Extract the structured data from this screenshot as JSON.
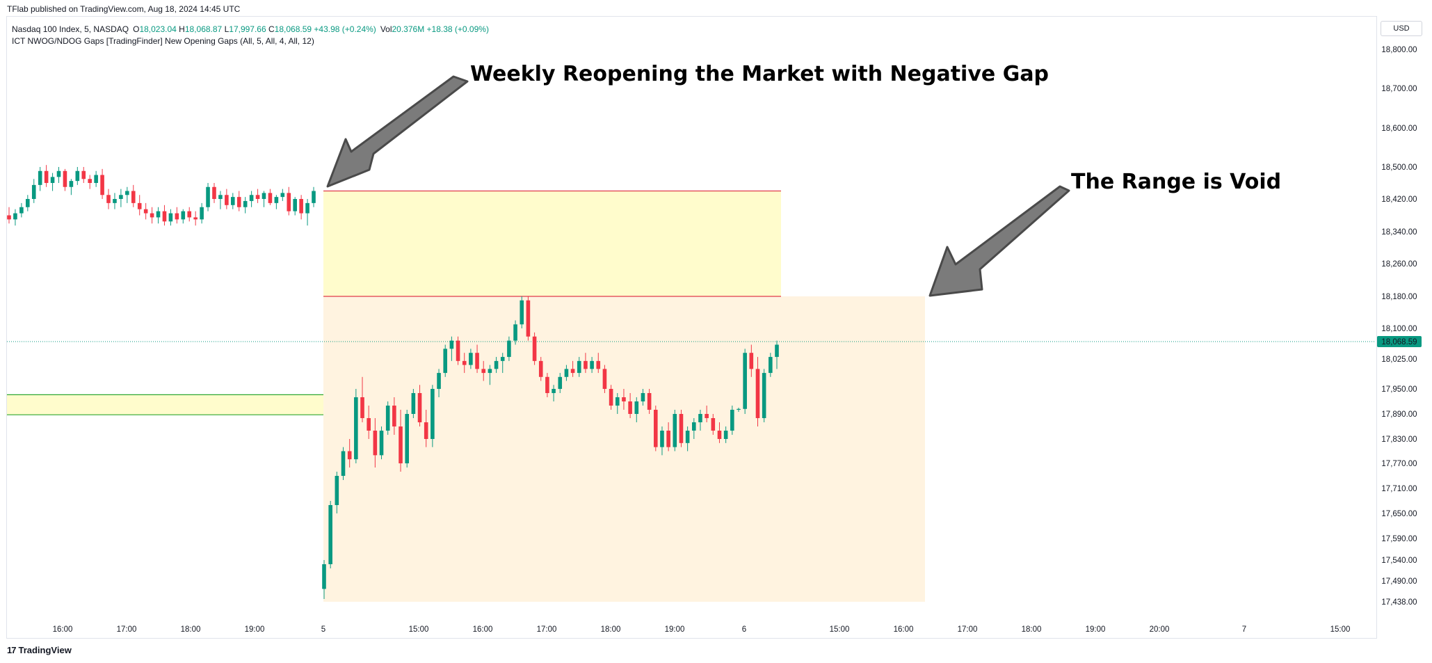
{
  "credit": "TFlab published on TradingView.com, Aug 18, 2024 14:45 UTC",
  "brand": "TradingView",
  "currency": "USD",
  "legend": {
    "symbol": "Nasdaq 100 Index, 5, NASDAQ",
    "o_label": "O",
    "o_value": "18,023.04",
    "h_label": "H",
    "h_value": "18,068.87",
    "l_label": "L",
    "l_value": "17,997.66",
    "c_label": "C",
    "c_value": "18,068.59",
    "change": "+43.98 (+0.24%)",
    "vol_label": "Vol",
    "vol_value": "20.376M",
    "vol_change": "+18.38 (+0.09%)",
    "indicator": "ICT NWOG/NDOG Gaps [TradingFinder] New Opening Gaps (All, 5, All, 4, All, 12)"
  },
  "annotations": {
    "negative_gap": "Weekly Reopening the Market with Negative Gap",
    "range_void": "The Range is Void"
  },
  "colors": {
    "up": "#089981",
    "down": "#f23645",
    "gap_fill": "#fffccc",
    "void_fill": "#fff3e0",
    "gap_line": "#e0394a",
    "small_gap_line": "#2fa82f",
    "arrow": "#7b7b7b",
    "price_label": "#089981"
  },
  "chart_data": {
    "type": "candlestick",
    "price_axis": {
      "ticks": [
        "18,800.00",
        "18,700.00",
        "18,600.00",
        "18,500.00",
        "18,420.00",
        "18,340.00",
        "18,260.00",
        "18,180.00",
        "18,100.00",
        "18,025.00",
        "17,950.00",
        "17,890.00",
        "17,830.00",
        "17,770.00",
        "17,710.00",
        "17,650.00",
        "17,590.00",
        "17,540.00",
        "17,490.00",
        "17,438.00"
      ],
      "last_price": "18,068.59"
    },
    "time_axis": {
      "ticks": [
        "16:00",
        "17:00",
        "18:00",
        "19:00",
        "5",
        "15:00",
        "16:00",
        "17:00",
        "18:00",
        "19:00",
        "6",
        "15:00",
        "16:00",
        "17:00",
        "18:00",
        "19:00",
        "20:00",
        "7",
        "15:00"
      ]
    },
    "zones": [
      {
        "name": "weekly-opening-gap",
        "from": 18180,
        "to": 18440
      },
      {
        "name": "void-range",
        "from": 17438,
        "to": 18180
      },
      {
        "name": "daily-opening-gap",
        "from": 17888,
        "to": 17936
      }
    ],
    "candles_session_1": [
      [
        18380,
        18400,
        18360,
        18370
      ],
      [
        18370,
        18395,
        18355,
        18385
      ],
      [
        18385,
        18410,
        18375,
        18400
      ],
      [
        18400,
        18430,
        18390,
        18420
      ],
      [
        18420,
        18470,
        18410,
        18455
      ],
      [
        18455,
        18500,
        18440,
        18490
      ],
      [
        18490,
        18505,
        18450,
        18460
      ],
      [
        18460,
        18485,
        18440,
        18475
      ],
      [
        18475,
        18500,
        18460,
        18490
      ],
      [
        18490,
        18495,
        18440,
        18450
      ],
      [
        18450,
        18470,
        18430,
        18465
      ],
      [
        18465,
        18500,
        18455,
        18490
      ],
      [
        18490,
        18500,
        18460,
        18470
      ],
      [
        18470,
        18480,
        18445,
        18460
      ],
      [
        18460,
        18490,
        18450,
        18480
      ],
      [
        18480,
        18495,
        18420,
        18430
      ],
      [
        18430,
        18445,
        18395,
        18410
      ],
      [
        18410,
        18435,
        18395,
        18420
      ],
      [
        18420,
        18445,
        18400,
        18430
      ],
      [
        18430,
        18450,
        18410,
        18440
      ],
      [
        18440,
        18455,
        18400,
        18410
      ],
      [
        18410,
        18430,
        18380,
        18395
      ],
      [
        18395,
        18410,
        18370,
        18385
      ],
      [
        18385,
        18400,
        18360,
        18375
      ],
      [
        18375,
        18400,
        18360,
        18390
      ],
      [
        18390,
        18405,
        18355,
        18365
      ],
      [
        18365,
        18395,
        18355,
        18385
      ],
      [
        18385,
        18400,
        18360,
        18370
      ],
      [
        18370,
        18395,
        18360,
        18390
      ],
      [
        18390,
        18400,
        18365,
        18375
      ],
      [
        18375,
        18390,
        18355,
        18370
      ],
      [
        18370,
        18410,
        18360,
        18400
      ],
      [
        18400,
        18460,
        18390,
        18450
      ],
      [
        18450,
        18460,
        18410,
        18420
      ],
      [
        18420,
        18440,
        18395,
        18430
      ],
      [
        18430,
        18445,
        18395,
        18405
      ],
      [
        18405,
        18435,
        18395,
        18425
      ],
      [
        18425,
        18440,
        18390,
        18400
      ],
      [
        18400,
        18425,
        18385,
        18415
      ],
      [
        18415,
        18440,
        18400,
        18430
      ],
      [
        18430,
        18445,
        18410,
        18420
      ],
      [
        18420,
        18440,
        18400,
        18435
      ],
      [
        18435,
        18445,
        18405,
        18410
      ],
      [
        18410,
        18430,
        18395,
        18425
      ],
      [
        18425,
        18445,
        18415,
        18435
      ],
      [
        18435,
        18450,
        18380,
        18390
      ],
      [
        18390,
        18425,
        18380,
        18420
      ],
      [
        18420,
        18430,
        18370,
        18385
      ],
      [
        18385,
        18420,
        18355,
        18410
      ],
      [
        18410,
        18450,
        18400,
        18440
      ]
    ],
    "candles_session_2": [
      [
        17470,
        17540,
        17445,
        17530
      ],
      [
        17530,
        17680,
        17520,
        17670
      ],
      [
        17670,
        17750,
        17650,
        17740
      ],
      [
        17740,
        17810,
        17730,
        17800
      ],
      [
        17800,
        17830,
        17760,
        17780
      ],
      [
        17780,
        17950,
        17770,
        17930
      ],
      [
        17930,
        17980,
        17870,
        17880
      ],
      [
        17880,
        17910,
        17830,
        17850
      ],
      [
        17850,
        17880,
        17760,
        17790
      ],
      [
        17790,
        17860,
        17780,
        17850
      ],
      [
        17850,
        17920,
        17840,
        17910
      ],
      [
        17910,
        17930,
        17840,
        17860
      ],
      [
        17860,
        17900,
        17750,
        17770
      ],
      [
        17770,
        17900,
        17760,
        17890
      ],
      [
        17890,
        17950,
        17880,
        17940
      ],
      [
        17940,
        17960,
        17860,
        17870
      ],
      [
        17870,
        17900,
        17810,
        17830
      ],
      [
        17830,
        17960,
        17810,
        17950
      ],
      [
        17950,
        18000,
        17930,
        17990
      ],
      [
        17990,
        18060,
        17980,
        18050
      ],
      [
        18050,
        18080,
        18020,
        18070
      ],
      [
        18070,
        18080,
        18010,
        18020
      ],
      [
        18020,
        18040,
        17990,
        18010
      ],
      [
        18010,
        18050,
        18000,
        18040
      ],
      [
        18040,
        18060,
        17990,
        18000
      ],
      [
        18000,
        18020,
        17970,
        17990
      ],
      [
        17990,
        18010,
        17960,
        18000
      ],
      [
        18000,
        18030,
        17990,
        18020
      ],
      [
        18020,
        18040,
        17990,
        18030
      ],
      [
        18030,
        18080,
        18020,
        18070
      ],
      [
        18070,
        18120,
        18060,
        18110
      ],
      [
        18110,
        18180,
        18100,
        18170
      ],
      [
        18170,
        18180,
        18070,
        18080
      ],
      [
        18080,
        18090,
        18010,
        18020
      ],
      [
        18020,
        18030,
        17970,
        17980
      ],
      [
        17980,
        17990,
        17930,
        17940
      ],
      [
        17940,
        17960,
        17920,
        17950
      ],
      [
        17950,
        17990,
        17940,
        17980
      ],
      [
        17980,
        18010,
        17970,
        18000
      ],
      [
        18000,
        18020,
        17980,
        17990
      ],
      [
        17990,
        18030,
        17980,
        18020
      ],
      [
        18020,
        18040,
        17990,
        18000
      ],
      [
        18000,
        18030,
        17990,
        18020
      ],
      [
        18020,
        18040,
        17990,
        18000
      ],
      [
        18000,
        18010,
        17940,
        17950
      ],
      [
        17950,
        17960,
        17900,
        17910
      ],
      [
        17910,
        17940,
        17890,
        17930
      ],
      [
        17930,
        17950,
        17900,
        17920
      ],
      [
        17920,
        17940,
        17880,
        17890
      ],
      [
        17890,
        17930,
        17870,
        17920
      ],
      [
        17920,
        17950,
        17910,
        17940
      ],
      [
        17940,
        17950,
        17890,
        17900
      ],
      [
        17900,
        17910,
        17800,
        17810
      ],
      [
        17810,
        17860,
        17790,
        17850
      ],
      [
        17850,
        17870,
        17800,
        17810
      ],
      [
        17810,
        17900,
        17800,
        17890
      ],
      [
        17890,
        17900,
        17810,
        17820
      ],
      [
        17820,
        17860,
        17800,
        17850
      ],
      [
        17850,
        17880,
        17830,
        17870
      ],
      [
        17870,
        17900,
        17850,
        17890
      ],
      [
        17890,
        17910,
        17870,
        17880
      ],
      [
        17880,
        17890,
        17840,
        17850
      ],
      [
        17850,
        17870,
        17820,
        17830
      ],
      [
        17830,
        17860,
        17820,
        17850
      ],
      [
        17850,
        17910,
        17840,
        17900
      ],
      [
        17900,
        17905,
        17895,
        17902
      ],
      [
        17902,
        18050,
        17890,
        18040
      ],
      [
        18040,
        18060,
        17980,
        18000
      ],
      [
        18000,
        18030,
        17860,
        17880
      ],
      [
        17880,
        18000,
        17870,
        17990
      ],
      [
        17990,
        18040,
        17980,
        18030
      ],
      [
        18030,
        18070,
        18000,
        18060
      ]
    ]
  }
}
